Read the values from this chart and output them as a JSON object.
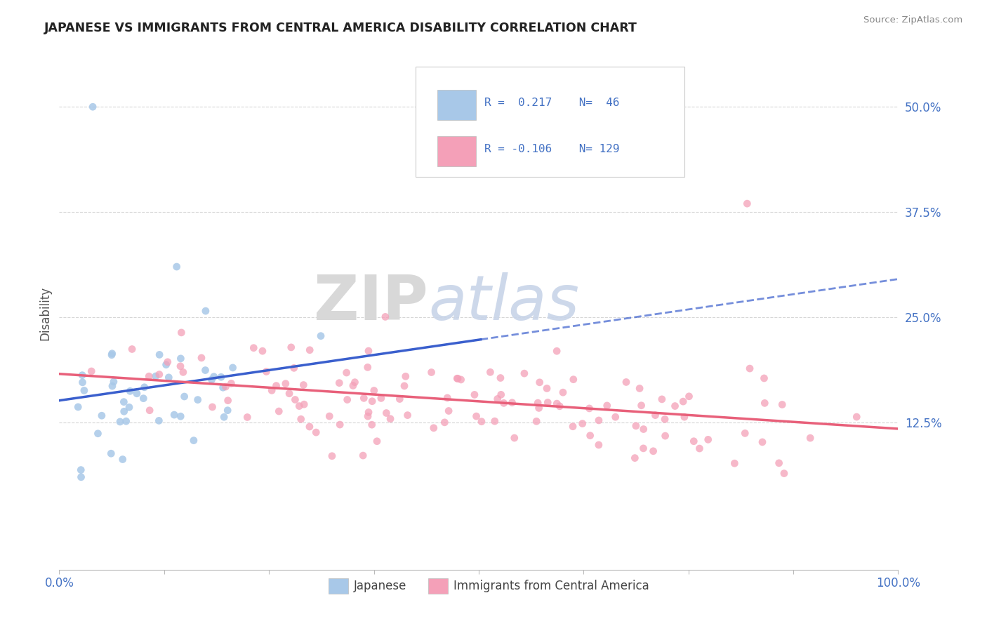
{
  "title": "JAPANESE VS IMMIGRANTS FROM CENTRAL AMERICA DISABILITY CORRELATION CHART",
  "source": "Source: ZipAtlas.com",
  "ylabel": "Disability",
  "yticks": [
    0.0,
    0.125,
    0.25,
    0.375,
    0.5
  ],
  "ytick_labels": [
    "",
    "12.5%",
    "25.0%",
    "37.5%",
    "50.0%"
  ],
  "xlim": [
    0.0,
    1.0
  ],
  "ylim": [
    -0.05,
    0.56
  ],
  "watermark_zip": "ZIP",
  "watermark_atlas": "atlas",
  "color_japanese": "#a8c8e8",
  "color_central": "#f4a0b8",
  "color_japanese_line": "#3a5fcd",
  "color_central_line": "#e8607a",
  "background_color": "#ffffff",
  "grid_color": "#cccccc",
  "axis_label_color": "#4472c4",
  "title_color": "#222222",
  "source_color": "#888888",
  "ylabel_color": "#555555"
}
